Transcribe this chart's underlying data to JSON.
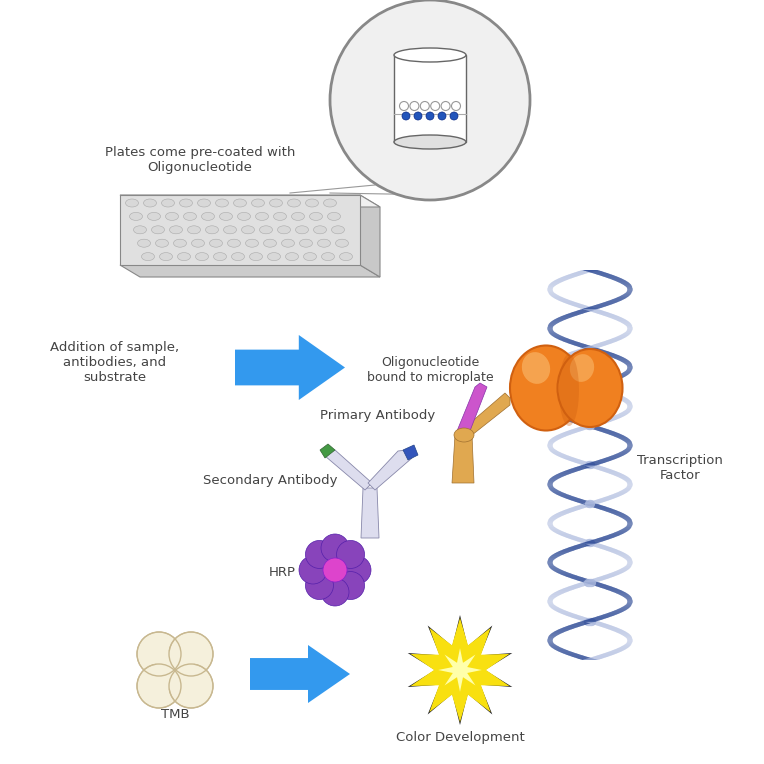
{
  "background_color": "#ffffff",
  "text_color": "#444444",
  "labels": {
    "pre_coated": "Plates come pre-coated with\nOligonucleotide",
    "addition": "Addition of sample,\nantibodies, and\nsubstrate",
    "oligo_bound": "Oligonucleotide\nbound to microplate",
    "primary_ab": "Primary Antibody",
    "secondary_ab": "Secondary Antibody",
    "hrp": "HRP",
    "tmb": "TMB",
    "color_dev": "Color Development",
    "transcription": "Transcription\nFactor"
  },
  "colors": {
    "blue_arrow": "#3399ee",
    "dna_dark": "#1a3a8c",
    "dna_light": "#aab8dd",
    "dna_mid": "#6070b0",
    "orange_blob": "#f08020",
    "orange_hi": "#f8b060",
    "orange_dark": "#d06010",
    "hrp_purple": "#8844bb",
    "hrp_pink": "#dd44cc",
    "hrp_mid": "#aa44aa",
    "primary_tan": "#e0a850",
    "primary_purple": "#cc55cc",
    "secondary_white": "#ddddee",
    "secondary_green": "#449944",
    "secondary_blue": "#3355bb",
    "tmb_cream": "#f5f0dc",
    "tmb_outline": "#c8b890",
    "star_yellow": "#f8e010",
    "star_outline": "#222222",
    "plate_top": "#f0f0f0",
    "plate_front": "#e0e0e0",
    "plate_right": "#c8c8c8",
    "plate_bottom_edge": "#b0b0b0",
    "well_face": "#d8d8d8",
    "well_edge": "#aaaaaa",
    "circle_bg": "#f0f0f0",
    "circle_border": "#888888"
  }
}
